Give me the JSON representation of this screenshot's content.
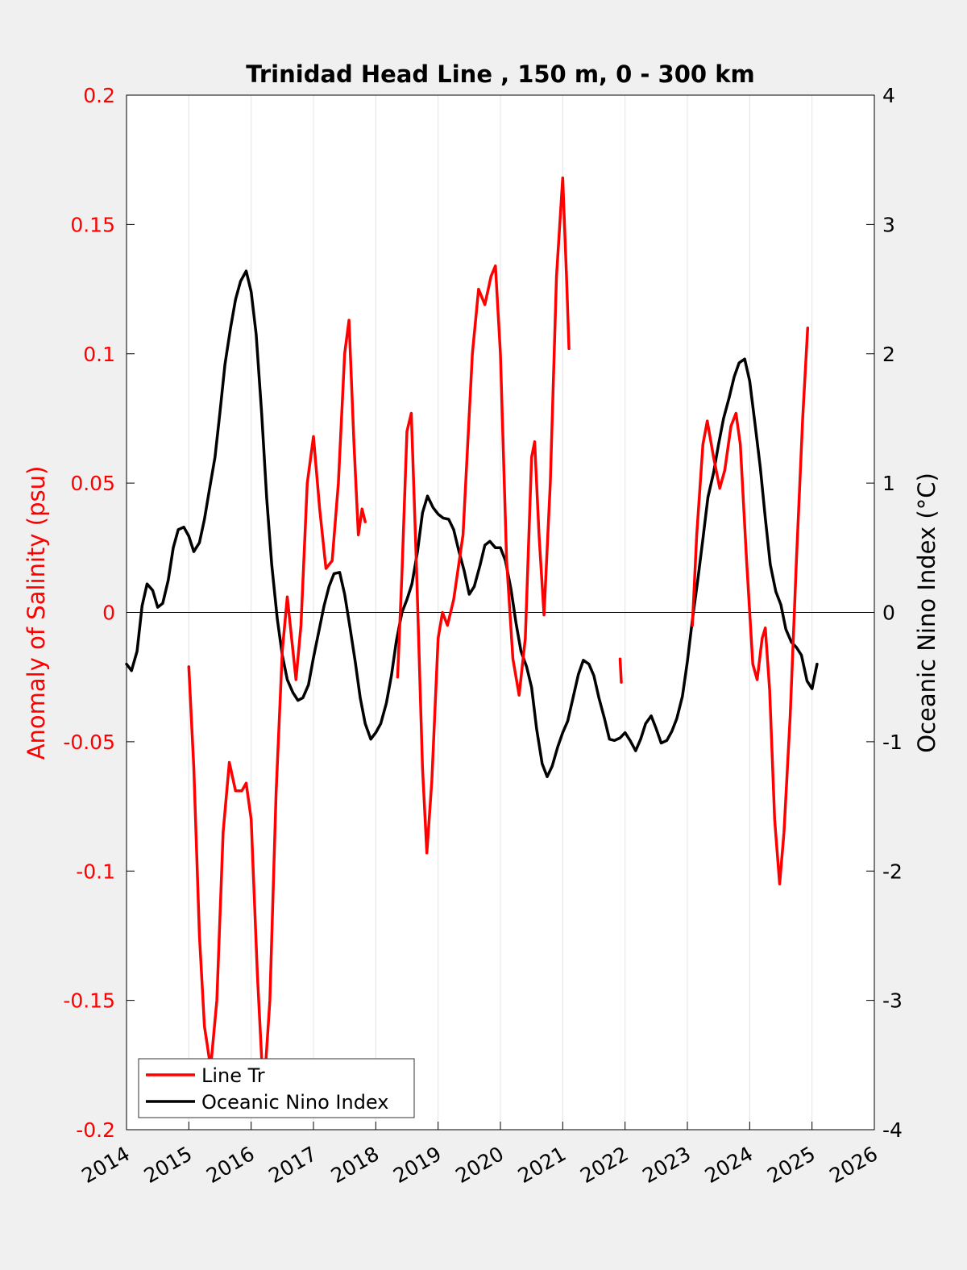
{
  "chart_data": {
    "type": "line",
    "title": "Trinidad Head Line , 150 m, 0 - 300 km",
    "ylabel_left": "Anomaly of Salinity (psu)",
    "ylabel_right": "Oceanic Nino Index (°C)",
    "xlabel": "",
    "xlim": [
      2014,
      2026
    ],
    "ylim_left": [
      -0.2,
      0.2
    ],
    "ylim_right": [
      -4,
      4
    ],
    "xticks": [
      "2014",
      "2015",
      "2016",
      "2017",
      "2018",
      "2019",
      "2020",
      "2021",
      "2022",
      "2023",
      "2024",
      "2025",
      "2026"
    ],
    "yticks_left": [
      "0.2",
      "0.15",
      "0.1",
      "0.05",
      "0",
      "-0.05",
      "-0.1",
      "-0.15",
      "-0.2"
    ],
    "yticks_right": [
      "4",
      "3",
      "2",
      "1",
      "0",
      "-1",
      "-2",
      "-3",
      "-4"
    ],
    "grid": "vertical",
    "zero_line": true,
    "legend_position": "bottom-left",
    "colors": {
      "salinity": "#ff0000",
      "oni": "#000000",
      "left_axis": "#ff0000",
      "right_axis": "#000000"
    },
    "series": [
      {
        "name": "Line Tr",
        "axis": "left",
        "color": "#ff0000",
        "segments": [
          [
            [
              2015.0,
              -0.021
            ],
            [
              2015.08,
              -0.06
            ],
            [
              2015.17,
              -0.125
            ],
            [
              2015.25,
              -0.16
            ],
            [
              2015.35,
              -0.176
            ],
            [
              2015.45,
              -0.15
            ],
            [
              2015.55,
              -0.085
            ],
            [
              2015.65,
              -0.058
            ],
            [
              2015.75,
              -0.069
            ],
            [
              2015.85,
              -0.069
            ],
            [
              2015.92,
              -0.066
            ],
            [
              2016.0,
              -0.08
            ],
            [
              2016.1,
              -0.14
            ],
            [
              2016.2,
              -0.187
            ],
            [
              2016.3,
              -0.15
            ],
            [
              2016.4,
              -0.07
            ],
            [
              2016.5,
              -0.015
            ],
            [
              2016.58,
              0.006
            ],
            [
              2016.65,
              -0.01
            ],
            [
              2016.72,
              -0.026
            ],
            [
              2016.8,
              -0.005
            ],
            [
              2016.9,
              0.05
            ],
            [
              2017.0,
              0.068
            ],
            [
              2017.1,
              0.04
            ],
            [
              2017.2,
              0.017
            ],
            [
              2017.3,
              0.02
            ],
            [
              2017.4,
              0.05
            ],
            [
              2017.5,
              0.1
            ],
            [
              2017.57,
              0.113
            ],
            [
              2017.65,
              0.065
            ],
            [
              2017.72,
              0.03
            ],
            [
              2017.78,
              0.04
            ],
            [
              2017.83,
              0.035
            ]
          ],
          [
            [
              2018.35,
              -0.025
            ],
            [
              2018.42,
              0.015
            ],
            [
              2018.5,
              0.07
            ],
            [
              2018.57,
              0.077
            ],
            [
              2018.65,
              0.02
            ],
            [
              2018.75,
              -0.06
            ],
            [
              2018.82,
              -0.093
            ],
            [
              2018.9,
              -0.065
            ],
            [
              2019.0,
              -0.01
            ],
            [
              2019.07,
              0.0
            ],
            [
              2019.15,
              -0.005
            ],
            [
              2019.25,
              0.005
            ],
            [
              2019.4,
              0.03
            ],
            [
              2019.55,
              0.1
            ],
            [
              2019.65,
              0.125
            ],
            [
              2019.75,
              0.119
            ],
            [
              2019.85,
              0.13
            ],
            [
              2019.92,
              0.134
            ],
            [
              2020.0,
              0.1
            ],
            [
              2020.1,
              0.02
            ],
            [
              2020.2,
              -0.018
            ],
            [
              2020.3,
              -0.032
            ],
            [
              2020.4,
              -0.01
            ],
            [
              2020.5,
              0.06
            ],
            [
              2020.55,
              0.066
            ],
            [
              2020.62,
              0.03
            ],
            [
              2020.7,
              -0.001
            ],
            [
              2020.8,
              0.05
            ],
            [
              2020.9,
              0.13
            ],
            [
              2021.0,
              0.168
            ],
            [
              2021.06,
              0.13
            ],
            [
              2021.1,
              0.102
            ]
          ],
          [
            [
              2021.92,
              -0.018
            ],
            [
              2021.94,
              -0.027
            ]
          ],
          [
            [
              2023.08,
              -0.005
            ],
            [
              2023.15,
              0.03
            ],
            [
              2023.25,
              0.065
            ],
            [
              2023.32,
              0.074
            ],
            [
              2023.42,
              0.06
            ],
            [
              2023.52,
              0.048
            ],
            [
              2023.6,
              0.055
            ],
            [
              2023.7,
              0.072
            ],
            [
              2023.78,
              0.077
            ],
            [
              2023.85,
              0.065
            ],
            [
              2023.95,
              0.02
            ],
            [
              2024.05,
              -0.02
            ],
            [
              2024.12,
              -0.026
            ],
            [
              2024.2,
              -0.01
            ],
            [
              2024.25,
              -0.006
            ],
            [
              2024.32,
              -0.03
            ],
            [
              2024.4,
              -0.08
            ],
            [
              2024.48,
              -0.105
            ],
            [
              2024.55,
              -0.085
            ],
            [
              2024.65,
              -0.04
            ],
            [
              2024.75,
              0.02
            ],
            [
              2024.85,
              0.075
            ],
            [
              2024.93,
              0.11
            ]
          ]
        ]
      },
      {
        "name": "Oceanic Nino Index",
        "axis": "right",
        "color": "#000000",
        "points": [
          [
            2014.0,
            -0.4
          ],
          [
            2014.08,
            -0.45
          ],
          [
            2014.17,
            -0.3
          ],
          [
            2014.25,
            0.05
          ],
          [
            2014.33,
            0.22
          ],
          [
            2014.42,
            0.17
          ],
          [
            2014.5,
            0.04
          ],
          [
            2014.58,
            0.07
          ],
          [
            2014.67,
            0.25
          ],
          [
            2014.75,
            0.5
          ],
          [
            2014.83,
            0.64
          ],
          [
            2014.92,
            0.66
          ],
          [
            2015.0,
            0.59
          ],
          [
            2015.08,
            0.47
          ],
          [
            2015.17,
            0.54
          ],
          [
            2015.25,
            0.72
          ],
          [
            2015.33,
            0.95
          ],
          [
            2015.42,
            1.2
          ],
          [
            2015.5,
            1.55
          ],
          [
            2015.58,
            1.92
          ],
          [
            2015.67,
            2.2
          ],
          [
            2015.75,
            2.42
          ],
          [
            2015.83,
            2.56
          ],
          [
            2015.92,
            2.64
          ],
          [
            2016.0,
            2.48
          ],
          [
            2016.08,
            2.15
          ],
          [
            2016.17,
            1.53
          ],
          [
            2016.25,
            0.88
          ],
          [
            2016.33,
            0.37
          ],
          [
            2016.42,
            -0.05
          ],
          [
            2016.5,
            -0.33
          ],
          [
            2016.58,
            -0.52
          ],
          [
            2016.67,
            -0.62
          ],
          [
            2016.75,
            -0.68
          ],
          [
            2016.83,
            -0.66
          ],
          [
            2016.92,
            -0.56
          ],
          [
            2017.0,
            -0.35
          ],
          [
            2017.08,
            -0.16
          ],
          [
            2017.17,
            0.05
          ],
          [
            2017.25,
            0.2
          ],
          [
            2017.33,
            0.3
          ],
          [
            2017.42,
            0.31
          ],
          [
            2017.5,
            0.14
          ],
          [
            2017.58,
            -0.1
          ],
          [
            2017.67,
            -0.38
          ],
          [
            2017.75,
            -0.66
          ],
          [
            2017.83,
            -0.86
          ],
          [
            2017.92,
            -0.98
          ],
          [
            2018.0,
            -0.93
          ],
          [
            2018.08,
            -0.86
          ],
          [
            2018.17,
            -0.7
          ],
          [
            2018.25,
            -0.49
          ],
          [
            2018.33,
            -0.22
          ],
          [
            2018.42,
            0.0
          ],
          [
            2018.5,
            0.1
          ],
          [
            2018.58,
            0.22
          ],
          [
            2018.67,
            0.47
          ],
          [
            2018.75,
            0.77
          ],
          [
            2018.83,
            0.9
          ],
          [
            2018.92,
            0.81
          ],
          [
            2019.0,
            0.76
          ],
          [
            2019.08,
            0.73
          ],
          [
            2019.17,
            0.72
          ],
          [
            2019.25,
            0.64
          ],
          [
            2019.33,
            0.48
          ],
          [
            2019.42,
            0.32
          ],
          [
            2019.5,
            0.14
          ],
          [
            2019.58,
            0.2
          ],
          [
            2019.67,
            0.36
          ],
          [
            2019.75,
            0.52
          ],
          [
            2019.83,
            0.55
          ],
          [
            2019.92,
            0.5
          ],
          [
            2020.0,
            0.5
          ],
          [
            2020.08,
            0.4
          ],
          [
            2020.17,
            0.18
          ],
          [
            2020.25,
            -0.08
          ],
          [
            2020.33,
            -0.3
          ],
          [
            2020.42,
            -0.42
          ],
          [
            2020.5,
            -0.58
          ],
          [
            2020.58,
            -0.9
          ],
          [
            2020.67,
            -1.17
          ],
          [
            2020.75,
            -1.27
          ],
          [
            2020.83,
            -1.19
          ],
          [
            2020.92,
            -1.04
          ],
          [
            2021.0,
            -0.93
          ],
          [
            2021.08,
            -0.84
          ],
          [
            2021.17,
            -0.65
          ],
          [
            2021.25,
            -0.48
          ],
          [
            2021.33,
            -0.37
          ],
          [
            2021.42,
            -0.4
          ],
          [
            2021.5,
            -0.49
          ],
          [
            2021.58,
            -0.66
          ],
          [
            2021.67,
            -0.82
          ],
          [
            2021.75,
            -0.98
          ],
          [
            2021.83,
            -0.99
          ],
          [
            2021.92,
            -0.97
          ],
          [
            2022.0,
            -0.93
          ],
          [
            2022.08,
            -0.99
          ],
          [
            2022.17,
            -1.07
          ],
          [
            2022.25,
            -0.98
          ],
          [
            2022.33,
            -0.86
          ],
          [
            2022.42,
            -0.8
          ],
          [
            2022.5,
            -0.9
          ],
          [
            2022.58,
            -1.01
          ],
          [
            2022.67,
            -0.99
          ],
          [
            2022.75,
            -0.92
          ],
          [
            2022.83,
            -0.82
          ],
          [
            2022.92,
            -0.65
          ],
          [
            2023.0,
            -0.38
          ],
          [
            2023.08,
            -0.06
          ],
          [
            2023.17,
            0.26
          ],
          [
            2023.25,
            0.57
          ],
          [
            2023.33,
            0.89
          ],
          [
            2023.42,
            1.08
          ],
          [
            2023.5,
            1.3
          ],
          [
            2023.58,
            1.5
          ],
          [
            2023.67,
            1.66
          ],
          [
            2023.75,
            1.82
          ],
          [
            2023.83,
            1.93
          ],
          [
            2023.92,
            1.96
          ],
          [
            2024.0,
            1.79
          ],
          [
            2024.08,
            1.48
          ],
          [
            2024.17,
            1.12
          ],
          [
            2024.25,
            0.73
          ],
          [
            2024.33,
            0.37
          ],
          [
            2024.42,
            0.16
          ],
          [
            2024.5,
            0.06
          ],
          [
            2024.58,
            -0.13
          ],
          [
            2024.67,
            -0.23
          ],
          [
            2024.75,
            -0.27
          ],
          [
            2024.83,
            -0.33
          ],
          [
            2024.92,
            -0.53
          ],
          [
            2025.0,
            -0.59
          ],
          [
            2025.08,
            -0.4
          ]
        ]
      }
    ]
  }
}
